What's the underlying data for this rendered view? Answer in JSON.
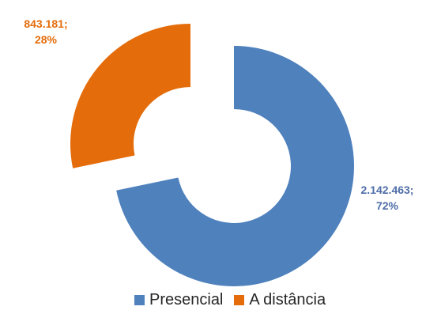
{
  "chart_data": {
    "type": "pie",
    "subtype": "doughnut-exploded",
    "series": [
      {
        "name": "Presencial",
        "value": 2142463,
        "value_label": "2.142.463;",
        "percent_label": "72%",
        "color": "#4F81BD"
      },
      {
        "name": "A distância",
        "value": 843181,
        "value_label": "843.181;",
        "percent_label": "28%",
        "color": "#E46C0A"
      }
    ],
    "legend": "bottom"
  }
}
